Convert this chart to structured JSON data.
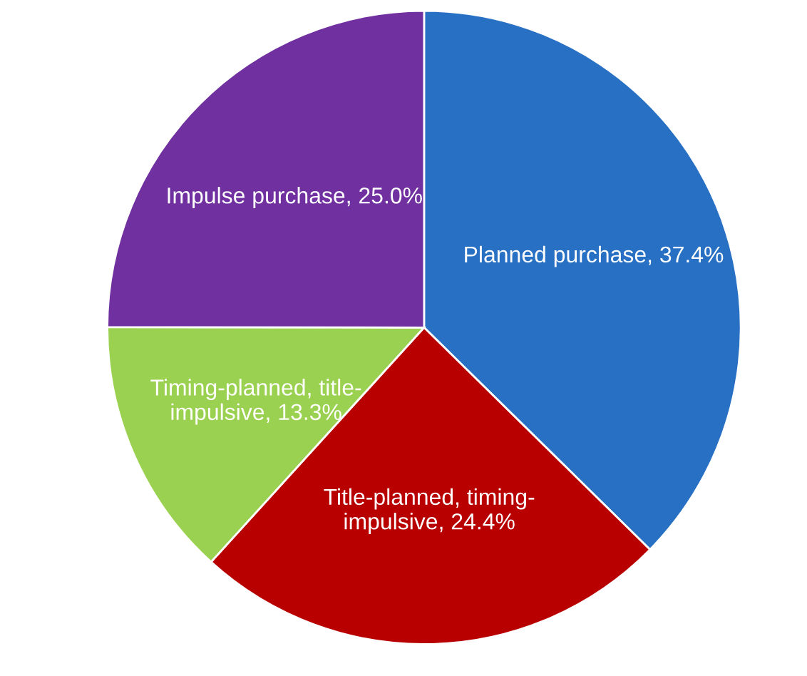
{
  "chart_data": {
    "type": "pie",
    "categories": [
      "Planned purchase",
      "Title-planned, timing-impulsive",
      "Timing-planned, title-impulsive",
      "Impulse purchase"
    ],
    "values": [
      37.4,
      24.4,
      13.3,
      25.0
    ],
    "value_labels": [
      "37.4%",
      "24.4%",
      "13.3%",
      "25.0%"
    ],
    "colors": [
      "#2870c4",
      "#b80000",
      "#9bd150",
      "#7030a0"
    ],
    "legend": false
  }
}
